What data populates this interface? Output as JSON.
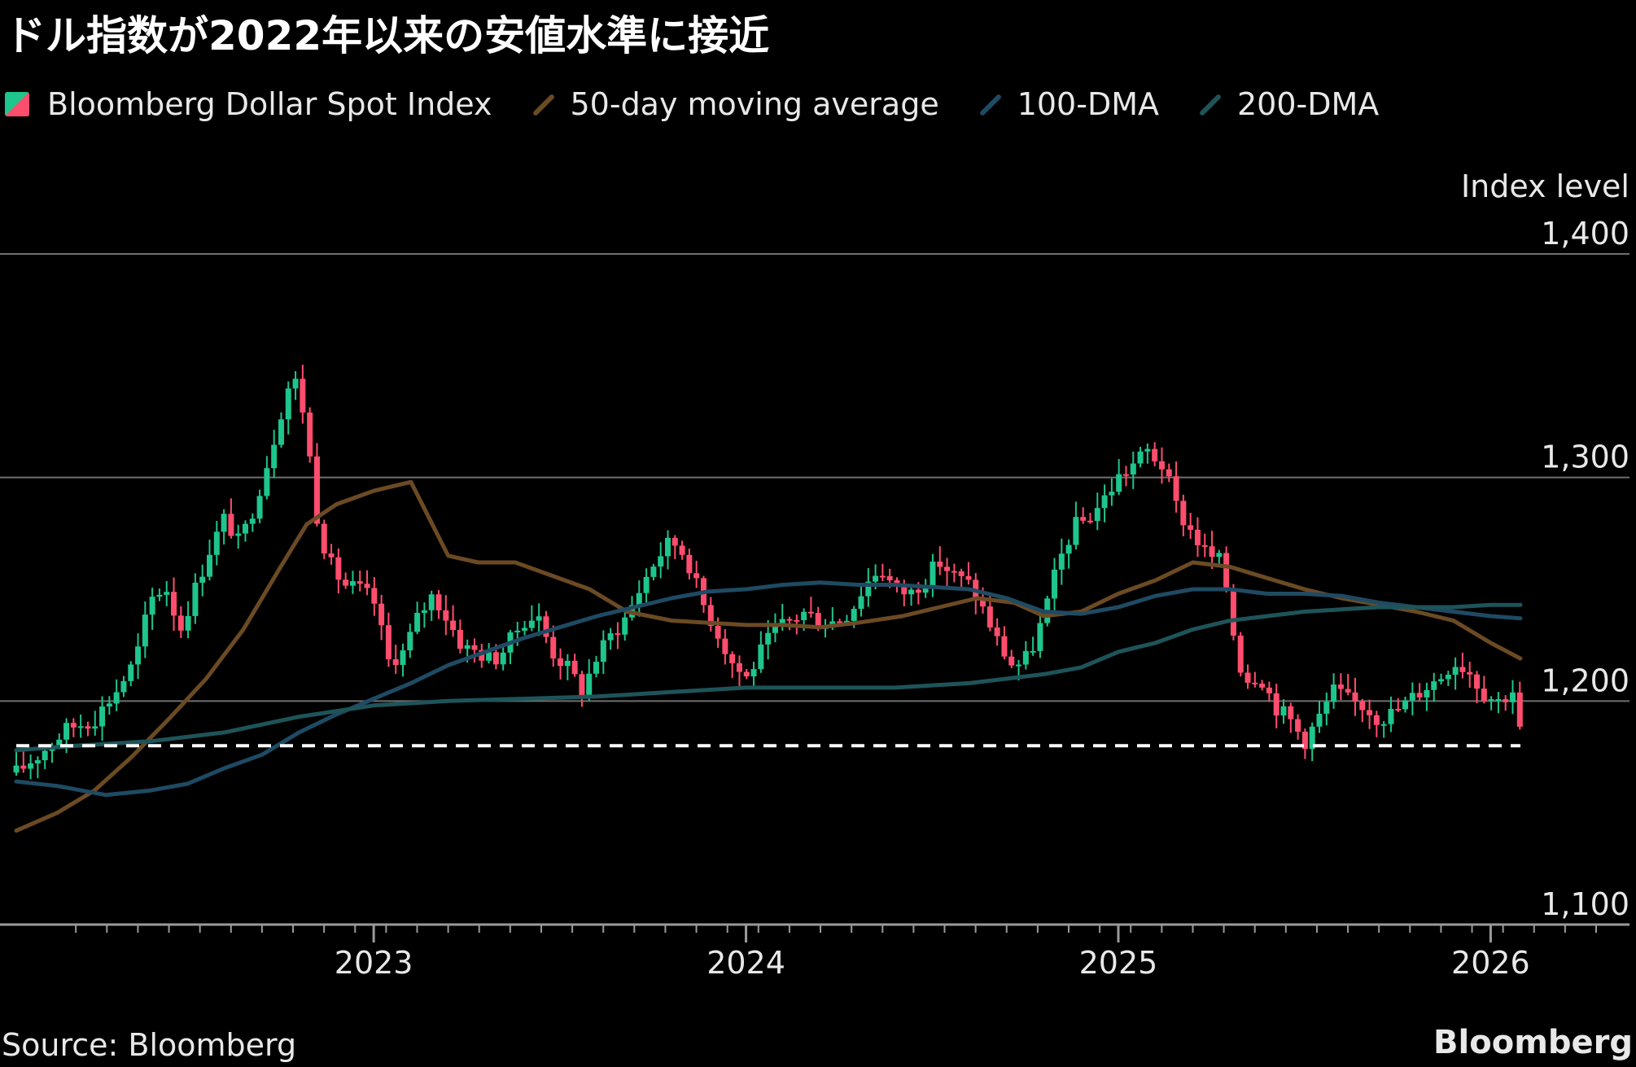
{
  "title": "ドル指数が2022年以来の安値水準に接近",
  "legend": [
    {
      "label": "Bloomberg Dollar Spot Index",
      "kind": "candle"
    },
    {
      "label": "50-day moving average",
      "kind": "line",
      "color": "#6b4a24"
    },
    {
      "label": "100-DMA",
      "kind": "line",
      "color": "#1f4a63"
    },
    {
      "label": "200-DMA",
      "kind": "line",
      "color": "#1e5459"
    }
  ],
  "source": "Source: Bloomberg",
  "brand": "Bloomberg",
  "colors": {
    "up": "#1ec58c",
    "down": "#ff4d6d",
    "grid": "#6f6f6f",
    "axis": "#9a9a9a",
    "threshold": "#ffffff"
  },
  "chart_data": {
    "type": "candlestick",
    "title": "ドル指数が2022年以来の安値水準に接近",
    "ylabel": "Index level",
    "ylim": [
      1100,
      1400
    ],
    "yticks": [
      {
        "value": 1400,
        "label": "1,400"
      },
      {
        "value": 1300,
        "label": "1,300"
      },
      {
        "value": 1200,
        "label": "1,200"
      },
      {
        "value": 1100,
        "label": "1,100"
      }
    ],
    "xlim": [
      2022.04,
      2026.38
    ],
    "xticks": [
      {
        "value": 2023,
        "label": "2023"
      },
      {
        "value": 2024,
        "label": "2024"
      },
      {
        "value": 2025,
        "label": "2025"
      },
      {
        "value": 2026,
        "label": "2026"
      }
    ],
    "threshold": {
      "value": 1180,
      "x_range": [
        2022.04,
        2026.08
      ],
      "style": "dashed"
    },
    "close_path": [
      [
        2022.04,
        1168
      ],
      [
        2022.1,
        1176
      ],
      [
        2022.18,
        1188
      ],
      [
        2022.25,
        1192
      ],
      [
        2022.31,
        1205
      ],
      [
        2022.36,
        1218
      ],
      [
        2022.4,
        1245
      ],
      [
        2022.44,
        1252
      ],
      [
        2022.48,
        1232
      ],
      [
        2022.52,
        1250
      ],
      [
        2022.56,
        1268
      ],
      [
        2022.6,
        1282
      ],
      [
        2022.64,
        1270
      ],
      [
        2022.68,
        1288
      ],
      [
        2022.72,
        1310
      ],
      [
        2022.76,
        1335
      ],
      [
        2022.78,
        1345
      ],
      [
        2022.8,
        1340
      ],
      [
        2022.82,
        1320
      ],
      [
        2022.85,
        1280
      ],
      [
        2022.88,
        1262
      ],
      [
        2022.92,
        1252
      ],
      [
        2022.96,
        1250
      ],
      [
        2023.0,
        1245
      ],
      [
        2023.04,
        1218
      ],
      [
        2023.08,
        1222
      ],
      [
        2023.12,
        1238
      ],
      [
        2023.16,
        1248
      ],
      [
        2023.2,
        1236
      ],
      [
        2023.24,
        1224
      ],
      [
        2023.28,
        1222
      ],
      [
        2023.32,
        1218
      ],
      [
        2023.36,
        1225
      ],
      [
        2023.4,
        1236
      ],
      [
        2023.44,
        1238
      ],
      [
        2023.48,
        1222
      ],
      [
        2023.52,
        1215
      ],
      [
        2023.56,
        1205
      ],
      [
        2023.6,
        1220
      ],
      [
        2023.64,
        1230
      ],
      [
        2023.68,
        1238
      ],
      [
        2023.72,
        1252
      ],
      [
        2023.76,
        1264
      ],
      [
        2023.8,
        1272
      ],
      [
        2023.84,
        1265
      ],
      [
        2023.88,
        1245
      ],
      [
        2023.92,
        1232
      ],
      [
        2023.96,
        1218
      ],
      [
        2024.0,
        1210
      ],
      [
        2024.04,
        1222
      ],
      [
        2024.08,
        1232
      ],
      [
        2024.12,
        1236
      ],
      [
        2024.16,
        1240
      ],
      [
        2024.2,
        1235
      ],
      [
        2024.24,
        1236
      ],
      [
        2024.28,
        1240
      ],
      [
        2024.32,
        1252
      ],
      [
        2024.36,
        1260
      ],
      [
        2024.4,
        1250
      ],
      [
        2024.44,
        1248
      ],
      [
        2024.48,
        1255
      ],
      [
        2024.52,
        1262
      ],
      [
        2024.56,
        1256
      ],
      [
        2024.6,
        1252
      ],
      [
        2024.64,
        1240
      ],
      [
        2024.68,
        1225
      ],
      [
        2024.72,
        1215
      ],
      [
        2024.76,
        1220
      ],
      [
        2024.8,
        1238
      ],
      [
        2024.84,
        1262
      ],
      [
        2024.88,
        1278
      ],
      [
        2024.92,
        1282
      ],
      [
        2024.96,
        1290
      ],
      [
        2025.0,
        1300
      ],
      [
        2025.04,
        1306
      ],
      [
        2025.08,
        1312
      ],
      [
        2025.12,
        1305
      ],
      [
        2025.16,
        1285
      ],
      [
        2025.2,
        1275
      ],
      [
        2025.24,
        1265
      ],
      [
        2025.28,
        1262
      ],
      [
        2025.3,
        1240
      ],
      [
        2025.32,
        1220
      ],
      [
        2025.34,
        1210
      ],
      [
        2025.38,
        1212
      ],
      [
        2025.42,
        1198
      ],
      [
        2025.46,
        1192
      ],
      [
        2025.5,
        1182
      ],
      [
        2025.54,
        1193
      ],
      [
        2025.58,
        1205
      ],
      [
        2025.62,
        1200
      ],
      [
        2025.66,
        1198
      ],
      [
        2025.7,
        1192
      ],
      [
        2025.74,
        1195
      ],
      [
        2025.78,
        1200
      ],
      [
        2025.82,
        1206
      ],
      [
        2025.86,
        1210
      ],
      [
        2025.9,
        1218
      ],
      [
        2025.94,
        1214
      ],
      [
        2025.98,
        1204
      ],
      [
        2026.02,
        1200
      ],
      [
        2026.06,
        1205
      ],
      [
        2026.08,
        1185
      ]
    ],
    "series": [
      {
        "name": "50-day moving average",
        "color": "#6b4a24",
        "points": [
          [
            2022.04,
            1142
          ],
          [
            2022.15,
            1150
          ],
          [
            2022.25,
            1160
          ],
          [
            2022.35,
            1175
          ],
          [
            2022.45,
            1192
          ],
          [
            2022.55,
            1210
          ],
          [
            2022.65,
            1232
          ],
          [
            2022.75,
            1260
          ],
          [
            2022.82,
            1279
          ],
          [
            2022.9,
            1288
          ],
          [
            2023.0,
            1294
          ],
          [
            2023.1,
            1298
          ],
          [
            2023.2,
            1265
          ],
          [
            2023.28,
            1262
          ],
          [
            2023.38,
            1262
          ],
          [
            2023.48,
            1256
          ],
          [
            2023.58,
            1250
          ],
          [
            2023.68,
            1240
          ],
          [
            2023.8,
            1236
          ],
          [
            2023.9,
            1235
          ],
          [
            2024.0,
            1234
          ],
          [
            2024.1,
            1234
          ],
          [
            2024.2,
            1233
          ],
          [
            2024.3,
            1235
          ],
          [
            2024.42,
            1238
          ],
          [
            2024.52,
            1242
          ],
          [
            2024.62,
            1246
          ],
          [
            2024.72,
            1244
          ],
          [
            2024.8,
            1238
          ],
          [
            2024.9,
            1240
          ],
          [
            2025.0,
            1248
          ],
          [
            2025.1,
            1254
          ],
          [
            2025.2,
            1262
          ],
          [
            2025.3,
            1260
          ],
          [
            2025.4,
            1255
          ],
          [
            2025.5,
            1250
          ],
          [
            2025.6,
            1246
          ],
          [
            2025.7,
            1243
          ],
          [
            2025.8,
            1240
          ],
          [
            2025.9,
            1236
          ],
          [
            2026.0,
            1226
          ],
          [
            2026.08,
            1219
          ]
        ]
      },
      {
        "name": "100-DMA",
        "color": "#1f4a63",
        "points": [
          [
            2022.04,
            1164
          ],
          [
            2022.15,
            1162
          ],
          [
            2022.28,
            1158
          ],
          [
            2022.4,
            1160
          ],
          [
            2022.5,
            1163
          ],
          [
            2022.6,
            1170
          ],
          [
            2022.7,
            1176
          ],
          [
            2022.8,
            1186
          ],
          [
            2022.9,
            1194
          ],
          [
            2023.0,
            1201
          ],
          [
            2023.1,
            1208
          ],
          [
            2023.2,
            1216
          ],
          [
            2023.3,
            1222
          ],
          [
            2023.4,
            1228
          ],
          [
            2023.5,
            1233
          ],
          [
            2023.6,
            1238
          ],
          [
            2023.7,
            1242
          ],
          [
            2023.8,
            1246
          ],
          [
            2023.9,
            1249
          ],
          [
            2024.0,
            1250
          ],
          [
            2024.1,
            1252
          ],
          [
            2024.2,
            1253
          ],
          [
            2024.3,
            1252
          ],
          [
            2024.4,
            1252
          ],
          [
            2024.5,
            1251
          ],
          [
            2024.6,
            1250
          ],
          [
            2024.7,
            1246
          ],
          [
            2024.8,
            1240
          ],
          [
            2024.9,
            1239
          ],
          [
            2025.0,
            1242
          ],
          [
            2025.1,
            1247
          ],
          [
            2025.2,
            1250
          ],
          [
            2025.3,
            1250
          ],
          [
            2025.4,
            1248
          ],
          [
            2025.5,
            1248
          ],
          [
            2025.6,
            1247
          ],
          [
            2025.7,
            1244
          ],
          [
            2025.8,
            1242
          ],
          [
            2025.9,
            1240
          ],
          [
            2026.0,
            1238
          ],
          [
            2026.08,
            1237
          ]
        ]
      },
      {
        "name": "200-DMA",
        "color": "#1e5459",
        "points": [
          [
            2022.04,
            1178
          ],
          [
            2022.2,
            1180
          ],
          [
            2022.4,
            1182
          ],
          [
            2022.6,
            1186
          ],
          [
            2022.8,
            1193
          ],
          [
            2023.0,
            1198
          ],
          [
            2023.2,
            1200
          ],
          [
            2023.4,
            1201
          ],
          [
            2023.6,
            1202
          ],
          [
            2023.8,
            1204
          ],
          [
            2024.0,
            1206
          ],
          [
            2024.2,
            1206
          ],
          [
            2024.4,
            1206
          ],
          [
            2024.6,
            1208
          ],
          [
            2024.8,
            1212
          ],
          [
            2024.9,
            1215
          ],
          [
            2025.0,
            1222
          ],
          [
            2025.1,
            1226
          ],
          [
            2025.2,
            1232
          ],
          [
            2025.3,
            1236
          ],
          [
            2025.4,
            1238
          ],
          [
            2025.5,
            1240
          ],
          [
            2025.6,
            1241
          ],
          [
            2025.7,
            1242
          ],
          [
            2025.8,
            1242
          ],
          [
            2025.9,
            1242
          ],
          [
            2026.0,
            1243
          ],
          [
            2026.08,
            1243
          ]
        ]
      }
    ]
  }
}
